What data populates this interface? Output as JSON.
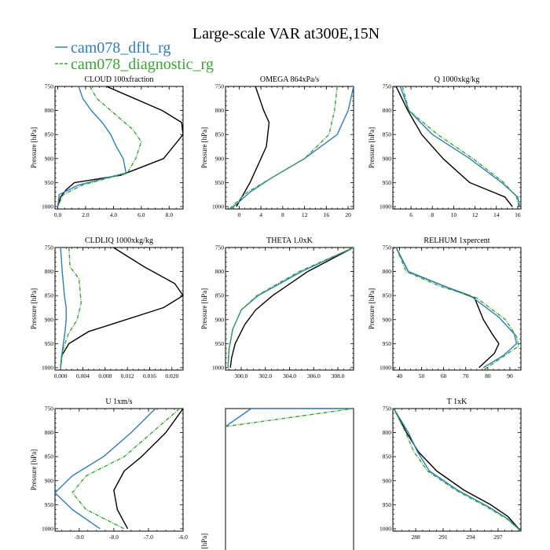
{
  "figure": {
    "title": "Large-scale VAR at300E,15N",
    "legend": [
      {
        "label": "cam078_dflt_rg",
        "color": "#2e7ebf",
        "dash": false
      },
      {
        "label": "cam078_diagnostic_rg",
        "color": "#3aa534",
        "dash": true
      }
    ],
    "colors": {
      "black": "#000000",
      "blue": "#2e7ebf",
      "green": "#3aa534"
    }
  },
  "chart_data": [
    {
      "type": "line",
      "title": "CLOUD  100xfraction",
      "ylabel": "Pressure [hPa]",
      "xlim": [
        -0.2,
        9.0
      ],
      "ylim": [
        1005,
        750
      ],
      "xticks": [
        0,
        2,
        4,
        6,
        8
      ],
      "xticklabels": [
        "0.0",
        "2.0",
        "4.0",
        "6.0",
        "8.0"
      ],
      "yticks": [
        750,
        800,
        850,
        900,
        950,
        1000
      ],
      "yticklabels": [
        "750",
        "800",
        "850",
        "900",
        "950",
        "1000"
      ],
      "series": [
        {
          "color": "black",
          "x": [
            3.5,
            5.5,
            7.5,
            8.9,
            9.0,
            7.6,
            4.5,
            1.2,
            0.6,
            0.2,
            0.0
          ],
          "y": [
            750,
            775,
            800,
            825,
            850,
            900,
            935,
            950,
            965,
            980,
            1000
          ]
        },
        {
          "color": "blue",
          "x": [
            1.5,
            1.8,
            2.4,
            3.2,
            3.8,
            4.2,
            4.7,
            4.9,
            1.5,
            0.1,
            0.0
          ],
          "y": [
            750,
            775,
            800,
            825,
            850,
            875,
            900,
            930,
            955,
            975,
            1000
          ]
        },
        {
          "color": "green",
          "dash": true,
          "x": [
            2.3,
            2.8,
            3.8,
            5.4,
            6.0,
            5.6,
            5.0,
            1.8,
            0.4,
            0.0
          ],
          "y": [
            750,
            775,
            800,
            840,
            865,
            900,
            930,
            955,
            975,
            1000
          ]
        }
      ]
    },
    {
      "type": "line",
      "title": "OMEGA  864xPa/s",
      "ylabel": "Pressure [hPa]",
      "xlim": [
        -2.5,
        21.0
      ],
      "ylim": [
        1005,
        750
      ],
      "xticks": [
        0,
        4,
        8,
        12,
        16,
        20
      ],
      "xticklabels": [
        "0",
        "4",
        "8",
        "12",
        "16",
        "20"
      ],
      "yticks": [
        750,
        800,
        850,
        900,
        950,
        1000
      ],
      "yticklabels": [
        "750",
        "800",
        "850",
        "900",
        "950",
        "1000"
      ],
      "series": [
        {
          "color": "black",
          "x": [
            3.0,
            4.5,
            5.5,
            5.0,
            4.0,
            2.0,
            -0.5
          ],
          "y": [
            750,
            800,
            825,
            875,
            900,
            950,
            1000
          ]
        },
        {
          "color": "blue",
          "x": [
            21.0,
            20.0,
            18.0,
            12.0,
            6.0,
            2.0,
            -1.5
          ],
          "y": [
            750,
            800,
            850,
            900,
            940,
            970,
            1005
          ]
        },
        {
          "color": "green",
          "dash": true,
          "x": [
            18.0,
            17.5,
            16.5,
            12.0,
            6.0,
            1.5,
            -1.8
          ],
          "y": [
            750,
            800,
            850,
            900,
            940,
            970,
            1005
          ]
        }
      ]
    },
    {
      "type": "line",
      "title": "Q  1000xkg/kg",
      "ylabel": "Pressure [hPa]",
      "xlim": [
        4.3,
        16.3
      ],
      "ylim": [
        1005,
        750
      ],
      "xticks": [
        6,
        8,
        10,
        12,
        14,
        16
      ],
      "xticklabels": [
        "6",
        "8",
        "10",
        "12",
        "14",
        "16"
      ],
      "yticks": [
        750,
        800,
        850,
        900,
        950,
        1000
      ],
      "yticklabels": [
        "750",
        "800",
        "850",
        "900",
        "950",
        "1000"
      ],
      "series": [
        {
          "color": "black",
          "x": [
            4.6,
            5.7,
            7.0,
            9.0,
            11.5,
            14.8,
            15.5
          ],
          "y": [
            750,
            800,
            850,
            900,
            950,
            980,
            1000
          ]
        },
        {
          "color": "blue",
          "x": [
            5.0,
            5.8,
            8.0,
            11.5,
            14.5,
            16.0,
            16.2
          ],
          "y": [
            750,
            800,
            850,
            900,
            950,
            980,
            1000
          ]
        },
        {
          "color": "green",
          "dash": true,
          "x": [
            5.2,
            5.8,
            8.5,
            11.8,
            14.7,
            15.9,
            16.1
          ],
          "y": [
            750,
            800,
            850,
            900,
            950,
            980,
            1000
          ]
        }
      ]
    },
    {
      "type": "line",
      "title": "CLDLIQ  1000xkg/kg",
      "ylabel": "Pressure [hPa]",
      "xlim": [
        -0.001,
        0.022
      ],
      "ylim": [
        1005,
        750
      ],
      "xticks": [
        0,
        0.004,
        0.008,
        0.012,
        0.016,
        0.02
      ],
      "xticklabels": [
        "0.000",
        "0.004",
        "0.008",
        "0.012",
        "0.016",
        "0.020"
      ],
      "yticks": [
        750,
        800,
        850,
        900,
        950,
        1000
      ],
      "yticklabels": [
        "750",
        "800",
        "850",
        "900",
        "950",
        "1000"
      ],
      "series": [
        {
          "color": "black",
          "x": [
            0.0095,
            0.015,
            0.0205,
            0.022,
            0.0185,
            0.005,
            0.0015,
            0.0002,
            0.0
          ],
          "y": [
            750,
            790,
            825,
            850,
            875,
            925,
            950,
            975,
            1000
          ]
        },
        {
          "color": "blue",
          "x": [
            0.0,
            0.0003,
            0.0007,
            0.001,
            0.001,
            0.0008,
            0.0005,
            0.0002,
            0.0
          ],
          "y": [
            750,
            800,
            850,
            875,
            900,
            925,
            950,
            975,
            1000
          ]
        },
        {
          "color": "green",
          "dash": true,
          "x": [
            0.0015,
            0.0017,
            0.0033,
            0.0037,
            0.003,
            0.0014,
            0.0005,
            0.0
          ],
          "y": [
            750,
            790,
            815,
            865,
            900,
            930,
            960,
            1000
          ]
        }
      ]
    },
    {
      "type": "line",
      "title": "THETA  1.0xK",
      "ylabel": "Pressure [hPa]",
      "xlim": [
        298.7,
        309.3
      ],
      "ylim": [
        1005,
        750
      ],
      "xticks": [
        300,
        302,
        304,
        306,
        308
      ],
      "xticklabels": [
        "300.0",
        "302.0",
        "304.0",
        "306.0",
        "308.0"
      ],
      "yticks": [
        750,
        800,
        850,
        900,
        950,
        1000
      ],
      "yticklabels": [
        "750",
        "800",
        "850",
        "900",
        "950",
        "1000"
      ],
      "series": [
        {
          "color": "black",
          "x": [
            309.3,
            305.5,
            302.6,
            301.2,
            300.3,
            299.5,
            299.2,
            299.1
          ],
          "y": [
            750,
            800,
            850,
            880,
            910,
            950,
            980,
            1000
          ]
        },
        {
          "color": "blue",
          "x": [
            309.3,
            305.0,
            301.4,
            300.0,
            299.3,
            299.0,
            298.9
          ],
          "y": [
            750,
            800,
            850,
            880,
            920,
            960,
            1000
          ]
        },
        {
          "color": "green",
          "dash": true,
          "x": [
            309.3,
            304.8,
            301.3,
            300.0,
            299.3,
            299.0,
            298.9
          ],
          "y": [
            750,
            800,
            850,
            880,
            920,
            960,
            1000
          ]
        }
      ]
    },
    {
      "type": "line",
      "title": "RELHUM  1xpercent",
      "ylabel": "Pressure [hPa]",
      "xlim": [
        37,
        95
      ],
      "ylim": [
        1005,
        750
      ],
      "xticks": [
        40,
        50,
        60,
        70,
        80,
        90
      ],
      "xticklabels": [
        "40",
        "50",
        "60",
        "70",
        "80",
        "90"
      ],
      "yticks": [
        750,
        800,
        850,
        900,
        950,
        1000
      ],
      "yticklabels": [
        "750",
        "800",
        "850",
        "900",
        "950",
        "1000"
      ],
      "series": [
        {
          "color": "black",
          "x": [
            38.5,
            44,
            60,
            74,
            78,
            82,
            85,
            83,
            76
          ],
          "y": [
            750,
            800,
            830,
            855,
            900,
            930,
            950,
            970,
            1000
          ]
        },
        {
          "color": "blue",
          "x": [
            38.5,
            44,
            60,
            72,
            85,
            92,
            93,
            87,
            78
          ],
          "y": [
            750,
            800,
            830,
            850,
            895,
            930,
            950,
            975,
            1000
          ]
        },
        {
          "color": "green",
          "dash": true,
          "x": [
            38.5,
            43,
            58,
            75,
            88,
            93,
            94,
            86,
            78
          ],
          "y": [
            750,
            800,
            830,
            855,
            900,
            935,
            955,
            980,
            1005
          ]
        }
      ]
    },
    {
      "type": "line",
      "title": "U  1xm/s",
      "ylabel": "Pressure [hPa]",
      "xlim": [
        -9.7,
        -6.0
      ],
      "ylim": [
        1005,
        750
      ],
      "xticks": [
        -9,
        -8,
        -7,
        -6
      ],
      "xticklabels": [
        "-9.0",
        "-8.0",
        "-7.0",
        "-6.0"
      ],
      "yticks": [
        750,
        800,
        850,
        900,
        950,
        1000
      ],
      "yticklabels": [
        "750",
        "800",
        "850",
        "900",
        "950",
        "1000"
      ],
      "series": [
        {
          "color": "black",
          "x": [
            -6.0,
            -6.5,
            -7.2,
            -7.7,
            -8.0,
            -7.9,
            -7.6
          ],
          "y": [
            750,
            800,
            850,
            880,
            920,
            960,
            1000
          ]
        },
        {
          "color": "blue",
          "x": [
            -6.8,
            -7.5,
            -8.3,
            -9.2,
            -9.7,
            -9.2,
            -8.4
          ],
          "y": [
            750,
            800,
            850,
            890,
            925,
            960,
            1000
          ]
        },
        {
          "color": "green",
          "dash": true,
          "x": [
            -6.1,
            -6.9,
            -7.7,
            -8.8,
            -9.2,
            -8.8,
            -7.7
          ],
          "y": [
            750,
            800,
            850,
            890,
            925,
            960,
            1000
          ]
        }
      ]
    },
    {
      "type": "line",
      "title": "",
      "ylabel": "Pressure [hPa]",
      "xlim": [
        0,
        1
      ],
      "ylim": [
        1005,
        750
      ],
      "xticks": [],
      "xticklabels": [],
      "yticks": [],
      "yticklabels": [],
      "series": [
        {
          "color": "blue",
          "x": [
            0.0,
            0.2,
            1.0
          ],
          "y": [
            780,
            750,
            750
          ]
        },
        {
          "color": "green",
          "dash": true,
          "x": [
            0.0,
            1.0
          ],
          "y": [
            780,
            750
          ]
        }
      ]
    },
    {
      "type": "line",
      "title": "T  1xK",
      "ylabel": "",
      "xlim": [
        285.5,
        299.5
      ],
      "ylim": [
        1005,
        750
      ],
      "xticks": [
        288,
        291,
        294,
        297
      ],
      "xticklabels": [
        "288",
        "291",
        "294",
        "297"
      ],
      "yticks": [
        750,
        800,
        850,
        900,
        950,
        1000
      ],
      "yticklabels": [
        "750",
        "800",
        "850",
        "900",
        "950",
        "1000"
      ],
      "series": [
        {
          "color": "black",
          "x": [
            285.6,
            287.0,
            288.3,
            290.3,
            293.3,
            296.2,
            298.1,
            299.5
          ],
          "y": [
            750,
            800,
            840,
            880,
            920,
            950,
            975,
            1005
          ]
        },
        {
          "color": "blue",
          "x": [
            285.6,
            287.2,
            288.2,
            289.5,
            292.6,
            296.0,
            298.1,
            299.5
          ],
          "y": [
            750,
            800,
            840,
            880,
            920,
            955,
            980,
            1005
          ]
        },
        {
          "color": "green",
          "dash": true,
          "x": [
            285.6,
            286.9,
            287.8,
            289.3,
            292.4,
            295.8,
            298.0,
            299.5
          ],
          "y": [
            750,
            800,
            840,
            880,
            920,
            955,
            980,
            1005
          ]
        }
      ]
    }
  ]
}
